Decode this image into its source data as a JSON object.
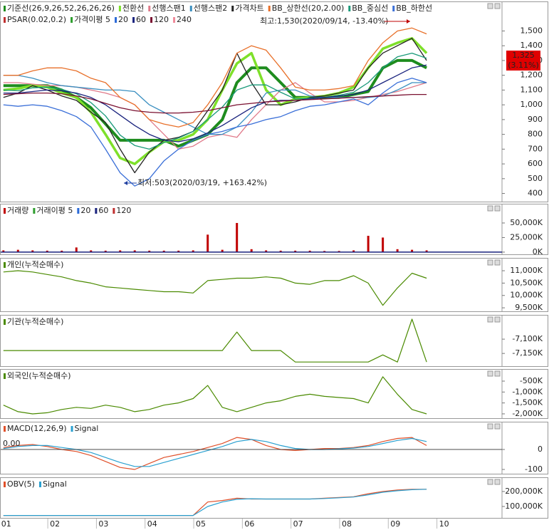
{
  "chart_data": [
    {
      "type": "line",
      "x": [
        1,
        1.3,
        1.6,
        1.9,
        2.2,
        2.5,
        2.8,
        3.1,
        3.4,
        3.7,
        4,
        4.3,
        4.6,
        4.9,
        5.2,
        5.5,
        5.8,
        6.1,
        6.4,
        6.7,
        7,
        7.3,
        7.6,
        7.9,
        8.2,
        8.5,
        8.8,
        9.1,
        9.4,
        9.7
      ],
      "xlim": [
        0.93,
        11.25
      ],
      "ylim": [
        340,
        1700
      ],
      "yticks": [
        {
          "value": 1500,
          "label": "1,500"
        },
        {
          "value": 1400,
          "label": "1,400"
        },
        {
          "value": 1300,
          "label": "1,300"
        },
        {
          "value": 1200,
          "label": "1,200"
        },
        {
          "value": 1100,
          "label": "1,100"
        },
        {
          "value": 1000,
          "label": "1,000"
        },
        900,
        800,
        700,
        600,
        500,
        400
      ],
      "series": [
        {
          "name": "기준선(26,9,26,52,26,26,26)",
          "color": "#1e8c1e",
          "values": [
            1130,
            1130,
            1130,
            1130,
            1100,
            1050,
            980,
            870,
            760,
            760,
            760,
            760,
            720,
            760,
            800,
            900,
            1150,
            1250,
            1250,
            1150,
            1050,
            1050,
            1050,
            1050,
            1070,
            1090,
            1250,
            1300,
            1300,
            1250
          ]
        },
        {
          "name": "전환선",
          "color": "#7ee02a",
          "values": [
            1100,
            1110,
            1130,
            1120,
            1080,
            1050,
            950,
            800,
            640,
            600,
            680,
            750,
            760,
            800,
            900,
            1100,
            1280,
            1350,
            1100,
            1000,
            1040,
            1050,
            1060,
            1080,
            1120,
            1250,
            1380,
            1420,
            1450,
            1350
          ]
        },
        {
          "name": "선행스팬1",
          "color": "#e07a8a",
          "values": [
            1150,
            1150,
            1140,
            1130,
            1130,
            1120,
            1100,
            1080,
            1050,
            1000,
            900,
            800,
            700,
            720,
            780,
            800,
            780,
            900,
            1000,
            1100,
            1150,
            1080,
            1020,
            1020,
            1030,
            1050,
            1070,
            1090,
            1120,
            1150
          ]
        },
        {
          "name": "선행스팬2",
          "color": "#3a8fc0",
          "values": [
            1200,
            1200,
            1180,
            1150,
            1130,
            1120,
            1110,
            1100,
            1100,
            1090,
            1000,
            950,
            900,
            850,
            800,
            800,
            850,
            950,
            1080,
            1100,
            1100,
            1060,
            1050,
            1050,
            1050,
            1050,
            1060,
            1100,
            1150,
            1150
          ]
        },
        {
          "name": "가격차트",
          "color": "#222222",
          "values": [
            1050,
            1080,
            1130,
            1100,
            1060,
            1030,
            950,
            880,
            700,
            540,
            680,
            760,
            780,
            820,
            960,
            1100,
            1350,
            1150,
            1000,
            1000,
            1020,
            1050,
            1060,
            1080,
            1100,
            1250,
            1350,
            1400,
            1450,
            1300
          ]
        },
        {
          "name": "BB_상한선(20,2.00)",
          "color": "#e8702a",
          "values": [
            1200,
            1200,
            1230,
            1250,
            1250,
            1230,
            1180,
            1150,
            1050,
            1000,
            900,
            870,
            850,
            880,
            1000,
            1150,
            1350,
            1400,
            1370,
            1250,
            1120,
            1100,
            1100,
            1110,
            1130,
            1300,
            1420,
            1500,
            1520,
            1480
          ]
        },
        {
          "name": "BB_중심선",
          "color": "#1a9a7a",
          "values": [
            1100,
            1095,
            1115,
            1120,
            1105,
            1075,
            1015,
            925,
            795,
            725,
            700,
            745,
            775,
            820,
            900,
            985,
            1100,
            1135,
            1135,
            1085,
            1040,
            1045,
            1050,
            1065,
            1085,
            1150,
            1250,
            1325,
            1350,
            1315
          ]
        },
        {
          "name": "BB_하한선",
          "color": "#3a6fd8",
          "values": [
            1000,
            990,
            1000,
            990,
            960,
            920,
            850,
            700,
            540,
            450,
            500,
            620,
            700,
            760,
            800,
            820,
            850,
            870,
            900,
            920,
            960,
            990,
            1000,
            1020,
            1040,
            1000,
            1080,
            1150,
            1180,
            1150
          ]
        },
        {
          "name": "60",
          "color": "#1a237e",
          "values": [
            1080,
            1080,
            1090,
            1100,
            1095,
            1080,
            1050,
            1000,
            930,
            860,
            800,
            760,
            750,
            770,
            810,
            860,
            920,
            980,
            1020,
            1030,
            1030,
            1040,
            1050,
            1060,
            1070,
            1100,
            1150,
            1200,
            1250,
            1270
          ]
        },
        {
          "name": "120",
          "color": "#7a1030",
          "values": [
            1070,
            1075,
            1080,
            1080,
            1075,
            1060,
            1040,
            1010,
            980,
            960,
            950,
            945,
            945,
            950,
            960,
            980,
            1000,
            1010,
            1020,
            1025,
            1030,
            1035,
            1040,
            1045,
            1050,
            1055,
            1060,
            1065,
            1070,
            1070
          ]
        }
      ],
      "legend_extra": [
        {
          "name": "PSAR(0.02,0.2)",
          "color": "#c03030"
        },
        {
          "name": "가격이평 5",
          "color": "#2e9e2e"
        },
        {
          "name": "20",
          "color": "#2a6ad8"
        },
        {
          "name": "240",
          "color": "#f08a9a"
        }
      ],
      "annotations": [
        "최고:1,530(2020/09/14, -13.40%)",
        "최저:503(2020/03/19, +163.42%)"
      ],
      "price_badge": [
        "1,325",
        "(3.11%)"
      ]
    },
    {
      "type": "bar",
      "x": [
        1,
        1.3,
        1.6,
        1.9,
        2.2,
        2.5,
        2.8,
        3.1,
        3.4,
        3.7,
        4,
        4.3,
        4.6,
        4.9,
        5.2,
        5.5,
        5.8,
        6.1,
        6.4,
        6.7,
        7,
        7.3,
        7.6,
        7.9,
        8.2,
        8.5,
        8.8,
        9.1,
        9.4,
        9.7
      ],
      "xlim": [
        0.93,
        11.25
      ],
      "ylim": [
        -5000,
        83000
      ],
      "yticks": [
        {
          "value": 50000,
          "label": "50,000K"
        },
        {
          "value": 25000,
          "label": "25,000K"
        },
        {
          "value": 0,
          "label": "0K"
        }
      ],
      "series": [
        {
          "name": "거래량",
          "color": "#c00000",
          "values": [
            3000,
            4000,
            3000,
            2500,
            2500,
            8000,
            3000,
            2500,
            3000,
            3000,
            2500,
            2500,
            2500,
            3000,
            30000,
            4000,
            50000,
            5000,
            3000,
            2500,
            2500,
            2500,
            2000,
            2000,
            3000,
            28000,
            25000,
            5000,
            4000,
            3000
          ]
        }
      ],
      "legend_extra": [
        {
          "name": "거래이평 5",
          "color": "#2e9e2e"
        },
        {
          "name": "20",
          "color": "#2a6ad8"
        },
        {
          "name": "60",
          "color": "#1a237e"
        },
        {
          "name": "120",
          "color": "#c03030"
        }
      ]
    },
    {
      "type": "line",
      "x": [
        1,
        1.3,
        1.6,
        1.9,
        2.2,
        2.5,
        2.8,
        3.1,
        3.4,
        3.7,
        4,
        4.3,
        4.6,
        4.9,
        5.2,
        5.5,
        5.8,
        6.1,
        6.4,
        6.7,
        7,
        7.3,
        7.6,
        7.9,
        8.2,
        8.5,
        8.8,
        9.1,
        9.4,
        9.7
      ],
      "xlim": [
        0.93,
        11.25
      ],
      "ylim": [
        9330,
        11520
      ],
      "yticks": [
        {
          "value": 11000,
          "label": "11,000K"
        },
        {
          "value": 10500,
          "label": "10,500K"
        },
        {
          "value": 10000,
          "label": "10,000K"
        },
        {
          "value": 9500,
          "label": "9,500K"
        }
      ],
      "series": [
        {
          "name": "개인(누적순매수)",
          "color": "#4a8a00",
          "values": [
            10950,
            11000,
            10950,
            10850,
            10750,
            10600,
            10500,
            10350,
            10300,
            10250,
            10200,
            10150,
            10150,
            10100,
            10600,
            10650,
            10700,
            10700,
            10750,
            10700,
            10500,
            10450,
            10600,
            10600,
            10800,
            10500,
            9600,
            10300,
            10900,
            10700
          ]
        }
      ]
    },
    {
      "type": "line",
      "x": [
        1,
        1.3,
        1.6,
        1.9,
        2.2,
        2.5,
        2.8,
        3.1,
        3.4,
        3.7,
        4,
        4.3,
        4.6,
        4.9,
        5.2,
        5.5,
        5.8,
        6.1,
        6.4,
        6.7,
        7,
        7.3,
        7.6,
        7.9,
        8.2,
        8.5,
        8.8,
        9.1,
        9.4,
        9.7
      ],
      "xlim": [
        0.93,
        11.25
      ],
      "ylim": [
        -7197,
        -7015
      ],
      "yticks": [
        {
          "value": -7100,
          "label": "-7,100K"
        },
        {
          "value": -7150,
          "label": "-7,150K"
        }
      ],
      "series": [
        {
          "name": "기관(누적순매수)",
          "color": "#4a8a00",
          "values": [
            -7140,
            -7140,
            -7140,
            -7140,
            -7140,
            -7140,
            -7140,
            -7140,
            -7140,
            -7140,
            -7140,
            -7140,
            -7140,
            -7140,
            -7140,
            -7140,
            -7075,
            -7140,
            -7140,
            -7140,
            -7180,
            -7180,
            -7180,
            -7180,
            -7180,
            -7180,
            -7155,
            -7180,
            -7030,
            -7180
          ]
        }
      ]
    },
    {
      "type": "line",
      "x": [
        1,
        1.3,
        1.6,
        1.9,
        2.2,
        2.5,
        2.8,
        3.1,
        3.4,
        3.7,
        4,
        4.3,
        4.6,
        4.9,
        5.2,
        5.5,
        5.8,
        6.1,
        6.4,
        6.7,
        7,
        7.3,
        7.6,
        7.9,
        8.2,
        8.5,
        8.8,
        9.1,
        9.4,
        9.7
      ],
      "xlim": [
        0.93,
        11.25
      ],
      "ylim": [
        -2230,
        55
      ],
      "yticks": [
        {
          "value": -500,
          "label": "-500K"
        },
        {
          "value": -1000,
          "label": "-1,000K"
        },
        {
          "value": -1500,
          "label": "-1,500K"
        },
        {
          "value": -2000,
          "label": "-2,000K"
        }
      ],
      "series": [
        {
          "name": "외국인(누적순매수)",
          "color": "#4a8a00",
          "values": [
            -1600,
            -1900,
            -2000,
            -1950,
            -1800,
            -1700,
            -1750,
            -1600,
            -1700,
            -1900,
            -1800,
            -1600,
            -1500,
            -1300,
            -700,
            -1700,
            -1900,
            -1700,
            -1500,
            -1400,
            -1200,
            -1100,
            -1200,
            -1250,
            -1300,
            -1500,
            -300,
            -1100,
            -1800,
            -2000
          ]
        }
      ]
    },
    {
      "type": "line",
      "x": [
        1,
        1.3,
        1.6,
        1.9,
        2.2,
        2.5,
        2.8,
        3.1,
        3.4,
        3.7,
        4,
        4.3,
        4.6,
        4.9,
        5.2,
        5.5,
        5.8,
        6.1,
        6.4,
        6.7,
        7,
        7.3,
        7.6,
        7.9,
        8.2,
        8.5,
        8.8,
        9.1,
        9.4,
        9.7
      ],
      "xlim": [
        0.93,
        11.25
      ],
      "ylim": [
        -125,
        139
      ],
      "yticks": [
        0,
        -100
      ],
      "annotations": [
        "0.00"
      ],
      "series": [
        {
          "name": "MACD(12,26,9)",
          "color": "#e0502a",
          "values": [
            10,
            20,
            25,
            15,
            0,
            -10,
            -30,
            -60,
            -90,
            -100,
            -70,
            -40,
            -25,
            -10,
            10,
            30,
            60,
            50,
            20,
            0,
            -5,
            0,
            5,
            5,
            10,
            20,
            40,
            55,
            60,
            20
          ]
        },
        {
          "name": "Signal",
          "color": "#2aa0d0",
          "values": [
            5,
            15,
            20,
            20,
            10,
            0,
            -15,
            -40,
            -65,
            -85,
            -85,
            -65,
            -45,
            -25,
            -5,
            15,
            40,
            50,
            40,
            20,
            5,
            0,
            0,
            3,
            7,
            15,
            30,
            45,
            55,
            40
          ]
        }
      ]
    },
    {
      "type": "line",
      "x": [
        1,
        1.3,
        1.6,
        1.9,
        2.2,
        2.5,
        2.8,
        3.1,
        3.4,
        3.7,
        4,
        4.3,
        4.6,
        4.9,
        5.2,
        5.5,
        5.8,
        6.1,
        6.4,
        6.7,
        7,
        7.3,
        7.6,
        7.9,
        8.2,
        8.5,
        8.8,
        9.1,
        9.4,
        9.7
      ],
      "xlim": [
        0.93,
        11.25
      ],
      "ylim": [
        19000,
        295000
      ],
      "yticks": [
        {
          "value": 200000,
          "label": "200,000K"
        },
        {
          "value": 100000,
          "label": "100,000K"
        }
      ],
      "xticks": [
        {
          "value": 1,
          "label": "01"
        },
        {
          "value": 2,
          "label": "02"
        },
        {
          "value": 3,
          "label": "03"
        },
        {
          "value": 4,
          "label": "04"
        },
        {
          "value": 5,
          "label": "05"
        },
        {
          "value": 6,
          "label": "06"
        },
        {
          "value": 7,
          "label": "07"
        },
        {
          "value": 8,
          "label": "08"
        },
        {
          "value": 9,
          "label": "09"
        },
        {
          "value": 10,
          "label": "10"
        }
      ],
      "series": [
        {
          "name": "OBV(5)",
          "color": "#e0502a",
          "values": [
            40000,
            40000,
            40000,
            40000,
            40000,
            40000,
            40000,
            40000,
            40000,
            40000,
            40000,
            40000,
            40000,
            40000,
            130000,
            140000,
            155000,
            150000,
            150000,
            150000,
            150000,
            150000,
            155000,
            160000,
            165000,
            185000,
            200000,
            210000,
            215000,
            215000
          ]
        },
        {
          "name": "Signal",
          "color": "#2aa0d0",
          "values": [
            40000,
            40000,
            40000,
            40000,
            40000,
            40000,
            40000,
            40000,
            40000,
            40000,
            40000,
            40000,
            40000,
            40000,
            100000,
            130000,
            148000,
            152000,
            150000,
            150000,
            150000,
            150000,
            153000,
            158000,
            163000,
            178000,
            195000,
            205000,
            212000,
            215000
          ]
        }
      ]
    }
  ]
}
